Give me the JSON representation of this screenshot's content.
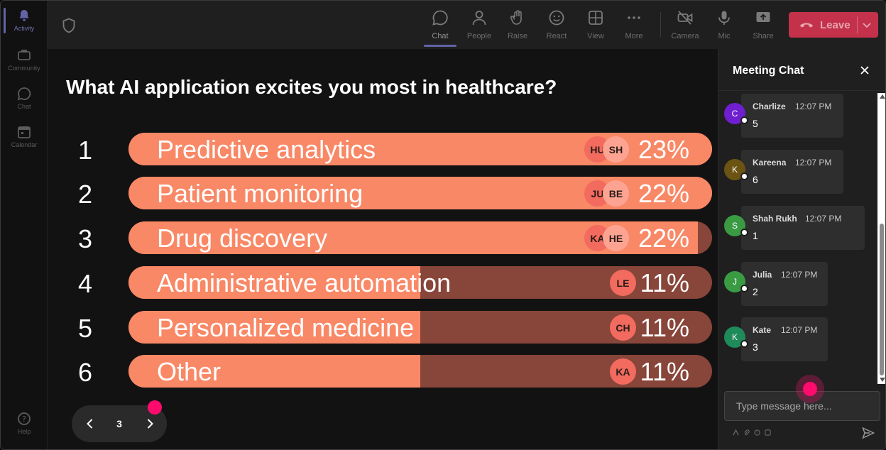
{
  "rail": {
    "items": [
      {
        "label": "Activity",
        "icon": "bell-icon"
      },
      {
        "label": "Community",
        "icon": "community-icon"
      },
      {
        "label": "Chat",
        "icon": "chat-icon"
      },
      {
        "label": "Calendar",
        "icon": "calendar-icon"
      },
      {
        "label": "Help",
        "icon": "help-icon"
      }
    ]
  },
  "toolbar": {
    "chat": "Chat",
    "people": "People",
    "raise": "Raise",
    "react": "React",
    "view": "View",
    "more": "More",
    "camera": "Camera",
    "mic": "Mic",
    "share": "Share",
    "leave": "Leave"
  },
  "poll": {
    "question": "What AI application excites you most in healthcare?",
    "options": [
      {
        "num": "1",
        "label": "Predictive analytics",
        "percent": "23%",
        "fill": 1.0,
        "avatars": [
          "HU",
          "SH"
        ]
      },
      {
        "num": "2",
        "label": "Patient monitoring",
        "percent": "22%",
        "fill": 1.0,
        "avatars": [
          "JU",
          "BE"
        ]
      },
      {
        "num": "3",
        "label": "Drug discovery",
        "percent": "22%",
        "fill": 0.976,
        "avatars": [
          "KA",
          "HE"
        ]
      },
      {
        "num": "4",
        "label": "Administrative automation",
        "percent": "11%",
        "fill": 0.5,
        "avatars": [
          "LE"
        ]
      },
      {
        "num": "5",
        "label": "Personalized medicine",
        "percent": "11%",
        "fill": 0.5,
        "avatars": [
          "CH"
        ]
      },
      {
        "num": "6",
        "label": "Other",
        "percent": "11%",
        "fill": 0.5,
        "avatars": [
          "KA"
        ]
      }
    ]
  },
  "pager": {
    "page": "3"
  },
  "chat": {
    "title": "Meeting Chat",
    "input_placeholder": "Type message here...",
    "messages": [
      {
        "initial": "C",
        "name": "Charlize",
        "time": "12:07 PM",
        "text": "5",
        "color": "#6f1fd0"
      },
      {
        "initial": "K",
        "name": "Kareena",
        "time": "12:07 PM",
        "text": "6",
        "color": "#6b5413"
      },
      {
        "initial": "S",
        "name": "Shah Rukh",
        "time": "12:07 PM",
        "text": "1",
        "color": "#3a9b43"
      },
      {
        "initial": "J",
        "name": "Julia",
        "time": "12:07 PM",
        "text": "2",
        "color": "#3a9b43"
      },
      {
        "initial": "K",
        "name": "Kate",
        "time": "12:07 PM",
        "text": "3",
        "color": "#1f8a5a"
      }
    ]
  },
  "colors": {
    "accent": "#6264a7",
    "leave": "#c4314b",
    "bar_fill": "#f98866",
    "bar_track": "#88453a",
    "cursor": "#ff0b6e"
  }
}
